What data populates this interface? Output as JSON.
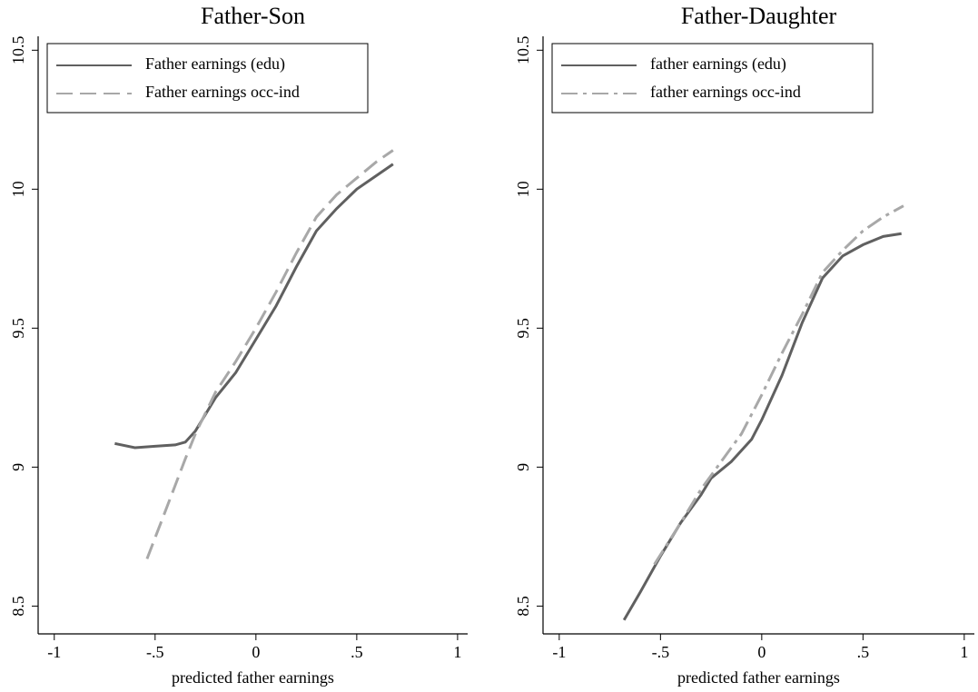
{
  "chart_data": [
    {
      "type": "line",
      "title": "Father-Son",
      "x_label": "predicted father earnings",
      "xlim": [
        -1.08,
        1.05
      ],
      "ylim": [
        8.4,
        10.55
      ],
      "xticks": [
        -1,
        {
          "value": -0.5,
          "label": "-.5"
        },
        0,
        {
          "value": 0.5,
          "label": ".5"
        },
        1
      ],
      "yticks": [
        8.5,
        9,
        9.5,
        10,
        10.5
      ],
      "series": [
        {
          "name": "Father earnings (edu)",
          "color": "#606060",
          "dash": "solid",
          "x": [
            -0.7,
            -0.6,
            -0.5,
            -0.4,
            -0.35,
            -0.3,
            -0.2,
            -0.1,
            0,
            0.1,
            0.2,
            0.3,
            0.4,
            0.5,
            0.6,
            0.68
          ],
          "values": [
            9.085,
            9.07,
            9.075,
            9.08,
            9.09,
            9.13,
            9.25,
            9.34,
            9.46,
            9.58,
            9.72,
            9.85,
            9.93,
            10.0,
            10.05,
            10.09
          ]
        },
        {
          "name": "Father earnings occ-ind",
          "color": "#a8a8a8",
          "dash": "longdash",
          "x": [
            -0.54,
            -0.45,
            -0.35,
            -0.3,
            -0.2,
            -0.1,
            0,
            0.1,
            0.2,
            0.3,
            0.4,
            0.5,
            0.6,
            0.68
          ],
          "values": [
            8.67,
            8.84,
            9.03,
            9.12,
            9.27,
            9.38,
            9.5,
            9.63,
            9.77,
            9.9,
            9.98,
            10.04,
            10.1,
            10.14
          ]
        }
      ]
    },
    {
      "type": "line",
      "title": "Father-Daughter",
      "x_label": "predicted father earnings",
      "xlim": [
        -1.08,
        1.05
      ],
      "ylim": [
        8.4,
        10.55
      ],
      "xticks": [
        -1,
        {
          "value": -0.5,
          "label": "-.5"
        },
        0,
        {
          "value": 0.5,
          "label": ".5"
        },
        1
      ],
      "yticks": [
        8.5,
        9,
        9.5,
        10,
        10.5
      ],
      "series": [
        {
          "name": "father earnings (edu)",
          "color": "#606060",
          "dash": "solid",
          "x": [
            -0.68,
            -0.6,
            -0.5,
            -0.4,
            -0.3,
            -0.25,
            -0.15,
            -0.05,
            0,
            0.1,
            0.2,
            0.3,
            0.4,
            0.5,
            0.6,
            0.69
          ],
          "values": [
            8.45,
            8.55,
            8.68,
            8.8,
            8.9,
            8.96,
            9.02,
            9.1,
            9.17,
            9.33,
            9.52,
            9.68,
            9.76,
            9.8,
            9.83,
            9.84
          ]
        },
        {
          "name": "father earnings occ-ind",
          "color": "#a8a8a8",
          "dash": "dashdot",
          "x": [
            -0.53,
            -0.4,
            -0.3,
            -0.2,
            -0.1,
            0,
            0.1,
            0.2,
            0.3,
            0.4,
            0.5,
            0.6,
            0.7
          ],
          "values": [
            8.65,
            8.8,
            8.92,
            9.02,
            9.12,
            9.26,
            9.41,
            9.55,
            9.7,
            9.78,
            9.85,
            9.9,
            9.94
          ]
        }
      ]
    }
  ]
}
